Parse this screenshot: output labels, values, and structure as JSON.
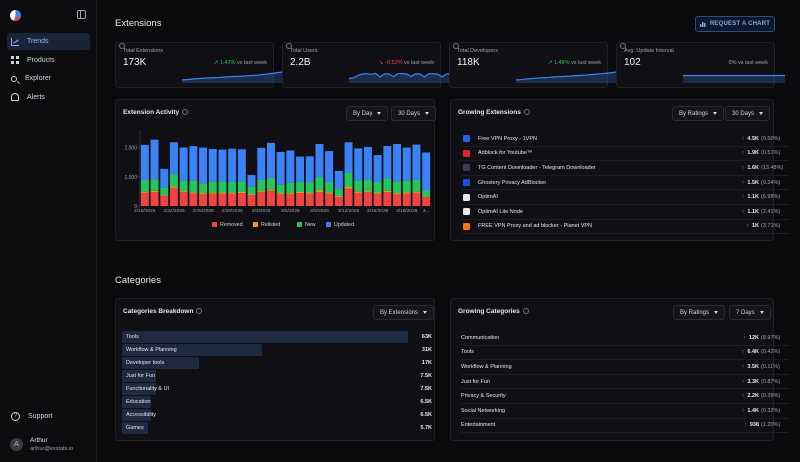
{
  "sidebar": {
    "nav": [
      {
        "label": "Trends",
        "icon": "trend-icon",
        "active": true
      },
      {
        "label": "Products",
        "icon": "grid-icon",
        "active": false
      },
      {
        "label": "Explorer",
        "icon": "search-icon",
        "active": false
      },
      {
        "label": "Alerts",
        "icon": "bell-icon",
        "active": false
      }
    ],
    "support_label": "Support",
    "user": {
      "initial": "A",
      "name": "Arthur",
      "email": "arthur@exstats.io"
    }
  },
  "extensions": {
    "title": "Extensions",
    "request_button": "REQUEST A CHART",
    "stats": [
      {
        "label": "Total Extensions",
        "value": "173K",
        "arrow": "↗",
        "change": "1.47%",
        "suffix": "vs last week",
        "trend": "up",
        "spark": [
          2,
          2.3,
          2.6,
          3,
          3.2,
          3.4,
          3.6,
          3.7,
          4,
          4.2,
          4.4,
          4.5,
          4.8,
          5,
          5.2,
          5.6,
          6,
          6.5,
          7,
          7.4
        ]
      },
      {
        "label": "Total Users",
        "value": "2.2B",
        "arrow": "↘",
        "change": "-0.53%",
        "suffix": "vs last week",
        "trend": "down",
        "spark": [
          3,
          3.5,
          5,
          6,
          6.2,
          5.8,
          6.3,
          4,
          6.1,
          6,
          4.2,
          6.2,
          6.3,
          6,
          4.3,
          6.1,
          6,
          4,
          6.2,
          6.1,
          5.9,
          4.1,
          6,
          6.2
        ]
      },
      {
        "label": "Total Developers",
        "value": "118K",
        "arrow": "↗",
        "change": "1.48%",
        "suffix": "vs last week",
        "trend": "up",
        "spark": [
          2,
          2.3,
          2.7,
          3,
          3.3,
          3.5,
          3.7,
          4,
          4.2,
          4.4,
          4.6,
          4.9,
          5.1,
          5.3,
          5.6,
          5.9,
          6.2,
          6.6,
          7,
          7.4
        ]
      },
      {
        "label": "Avg. Update Interval",
        "value": "102",
        "arrow": "",
        "change": "0%",
        "suffix": "vs last week",
        "trend": "flat",
        "spark": [
          5,
          5,
          5,
          5,
          5,
          5,
          5,
          5,
          5,
          5,
          5,
          5,
          5,
          5,
          5,
          5,
          5,
          5,
          5,
          5
        ]
      }
    ]
  },
  "activity": {
    "title": "Extension Activity",
    "dropdown1": "By Day",
    "dropdown2": "30 Days"
  },
  "chart_data": {
    "type": "bar",
    "stacked": true,
    "title": "Extension Activity",
    "xlabel": "",
    "ylabel": "",
    "ylim": [
      0,
      2600
    ],
    "yticks": [
      "2,000",
      "1,000",
      "0"
    ],
    "categories": [
      "2/19/2026",
      "2/20/2026",
      "2/21/2026",
      "2/22/2026",
      "2/23/2026",
      "2/24/2026",
      "2/25/2026",
      "2/26/2026",
      "2/27/2026",
      "2/28/2026",
      "3/1/2026",
      "3/2/2026",
      "3/3/2026",
      "3/4/2026",
      "3/5/2026",
      "3/6/2026",
      "3/7/2026",
      "3/8/2026",
      "3/9/2026",
      "3/10/2026",
      "3/11/2026",
      "3/12/2026",
      "3/13/2026",
      "3/14/2026",
      "3/15/2026",
      "3/16/2026",
      "3/17/2026",
      "3/18/2026",
      "3/19/2026",
      "3/20/2026"
    ],
    "xtick_labels": [
      "2/19/2026",
      "2/22/2026",
      "2/25/2026",
      "2/28/2026",
      "3/3/2026",
      "3/6/2026",
      "3/9/2026",
      "3/12/2026",
      "3/15/2026",
      "3/18/2026",
      "3..."
    ],
    "xtick_index": [
      0,
      3,
      6,
      9,
      12,
      15,
      18,
      21,
      24,
      27,
      29
    ],
    "legend": "bottom",
    "series": [
      {
        "name": "Removed",
        "color": "#ef4444",
        "values": [
          450,
          480,
          340,
          620,
          470,
          430,
          400,
          420,
          420,
          420,
          440,
          380,
          470,
          520,
          410,
          400,
          440,
          420,
          480,
          420,
          300,
          600,
          450,
          470,
          420,
          480,
          400,
          420,
          450,
          300
        ]
      },
      {
        "name": "Relisted",
        "color": "#f59e0b",
        "values": [
          40,
          40,
          30,
          50,
          40,
          40,
          40,
          40,
          40,
          40,
          40,
          30,
          40,
          40,
          30,
          40,
          40,
          40,
          50,
          40,
          40,
          50,
          40,
          40,
          40,
          40,
          40,
          40,
          40,
          30
        ]
      },
      {
        "name": "New",
        "color": "#22c55e",
        "values": [
          400,
          400,
          260,
          420,
          360,
          400,
          340,
          380,
          380,
          360,
          360,
          260,
          380,
          400,
          300,
          360,
          360,
          360,
          460,
          360,
          240,
          480,
          380,
          380,
          360,
          420,
          400,
          420,
          400,
          200
        ]
      },
      {
        "name": "Updated",
        "color": "#3b82f6",
        "values": [
          1200,
          1350,
          640,
          1090,
          1130,
          1180,
          1220,
          1110,
          1090,
          1140,
          1100,
          390,
          1100,
          1200,
          1110,
          1100,
          850,
          880,
          1130,
          1060,
          620,
          1050,
          1100,
          1130,
          920,
          1110,
          1280,
          1120,
          1210,
          1300
        ]
      }
    ]
  },
  "growing_extensions": {
    "title": "Growing Extensions",
    "dropdown1": "By Ratings",
    "dropdown2": "30 Days",
    "items": [
      {
        "name": "Free VPN Proxy - 1VPN",
        "value": "4.5K",
        "pct": "(9.50%)",
        "color": "#2563eb",
        "icon": "vpn-shield-icon"
      },
      {
        "name": "Adblock for Youtube™",
        "value": "1.9K",
        "pct": "(0.51%)",
        "color": "#dc2626",
        "icon": "adblock-icon"
      },
      {
        "name": "TG Content Downloader - Telegram Downloader",
        "value": "1.6K",
        "pct": "(13.48%)",
        "color": "#374151",
        "icon": "download-icon"
      },
      {
        "name": "Ghostery Privacy AdBlocker",
        "value": "1.5K",
        "pct": "(9.24%)",
        "color": "#1d4ed8",
        "icon": "ghost-icon"
      },
      {
        "name": "OptimAI",
        "value": "1.1K",
        "pct": "(6.98%)",
        "color": "#e5e7eb",
        "icon": "optimai-icon"
      },
      {
        "name": "OptimAI Lite Node",
        "value": "1.1K",
        "pct": "(2.41%)",
        "color": "#e5e7eb",
        "icon": "triangle-icon"
      },
      {
        "name": "FREE VPN Proxy and ad blocker - Planet VPN",
        "value": "1K",
        "pct": "(3.71%)",
        "color": "#f97316",
        "icon": "planet-icon"
      }
    ]
  },
  "categories": {
    "title": "Categories",
    "breakdown": {
      "title": "Categories Breakdown",
      "dropdown": "By Extensions",
      "items": [
        {
          "name": "Tools",
          "value": "63K",
          "fraction": 1.0
        },
        {
          "name": "Workflow & Planning",
          "value": "31K",
          "fraction": 0.49
        },
        {
          "name": "Developer tools",
          "value": "17K",
          "fraction": 0.27
        },
        {
          "name": "Just for Fun",
          "value": "7.5K",
          "fraction": 0.12
        },
        {
          "name": "Functionality & UI",
          "value": "7.5K",
          "fraction": 0.12
        },
        {
          "name": "Education",
          "value": "6.5K",
          "fraction": 0.1
        },
        {
          "name": "Accessibility",
          "value": "6.5K",
          "fraction": 0.1
        },
        {
          "name": "Games",
          "value": "5.7K",
          "fraction": 0.09
        }
      ]
    },
    "growing": {
      "title": "Growing Categories",
      "dropdown1": "By Ratings",
      "dropdown2": "7 Days",
      "items": [
        {
          "name": "Communication",
          "value": "12K",
          "pct": "(8.97%)"
        },
        {
          "name": "Tools",
          "value": "6.4K",
          "pct": "(0.42%)"
        },
        {
          "name": "Workflow & Planning",
          "value": "3.5K",
          "pct": "(0.11%)"
        },
        {
          "name": "Just for Fun",
          "value": "3.3K",
          "pct": "(0.87%)"
        },
        {
          "name": "Privacy & Security",
          "value": "2.2K",
          "pct": "(0.39%)"
        },
        {
          "name": "Social Networking",
          "value": "1.4K",
          "pct": "(0.32%)"
        },
        {
          "name": "Entertainment",
          "value": "938",
          "pct": "(1.20%)"
        }
      ]
    }
  }
}
